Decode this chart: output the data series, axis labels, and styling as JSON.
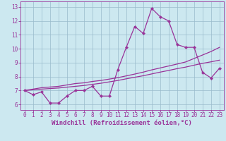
{
  "xlabel": "Windchill (Refroidissement éolien,°C)",
  "x_values": [
    0,
    1,
    2,
    3,
    4,
    5,
    6,
    7,
    8,
    9,
    10,
    11,
    12,
    13,
    14,
    15,
    16,
    17,
    18,
    19,
    20,
    21,
    22,
    23
  ],
  "line1_y": [
    7.0,
    6.7,
    6.9,
    6.1,
    6.1,
    6.6,
    7.0,
    7.0,
    7.3,
    6.6,
    6.6,
    8.5,
    10.1,
    11.6,
    11.1,
    12.9,
    12.3,
    12.0,
    10.3,
    10.1,
    10.1,
    8.3,
    7.9,
    8.6
  ],
  "line2_y": [
    7.0,
    7.1,
    7.2,
    7.25,
    7.3,
    7.4,
    7.5,
    7.55,
    7.65,
    7.72,
    7.82,
    7.92,
    8.05,
    8.18,
    8.32,
    8.48,
    8.62,
    8.76,
    8.9,
    9.05,
    9.3,
    9.55,
    9.8,
    10.1
  ],
  "line3_y": [
    7.0,
    7.05,
    7.1,
    7.14,
    7.18,
    7.24,
    7.3,
    7.36,
    7.44,
    7.52,
    7.62,
    7.72,
    7.84,
    7.95,
    8.06,
    8.19,
    8.32,
    8.44,
    8.57,
    8.68,
    8.82,
    8.95,
    9.06,
    9.18
  ],
  "line_color": "#993399",
  "bg_color": "#cce8f0",
  "grid_color": "#99bbcc",
  "ylim": [
    5.6,
    13.4
  ],
  "xlim": [
    -0.5,
    23.5
  ],
  "yticks": [
    6,
    7,
    8,
    9,
    10,
    11,
    12,
    13
  ],
  "xticks": [
    0,
    1,
    2,
    3,
    4,
    5,
    6,
    7,
    8,
    9,
    10,
    11,
    12,
    13,
    14,
    15,
    16,
    17,
    18,
    19,
    20,
    21,
    22,
    23
  ],
  "tick_fontsize": 5.5,
  "xlabel_fontsize": 6.5,
  "marker": "D",
  "marker_size": 2.2,
  "linewidth": 0.9
}
